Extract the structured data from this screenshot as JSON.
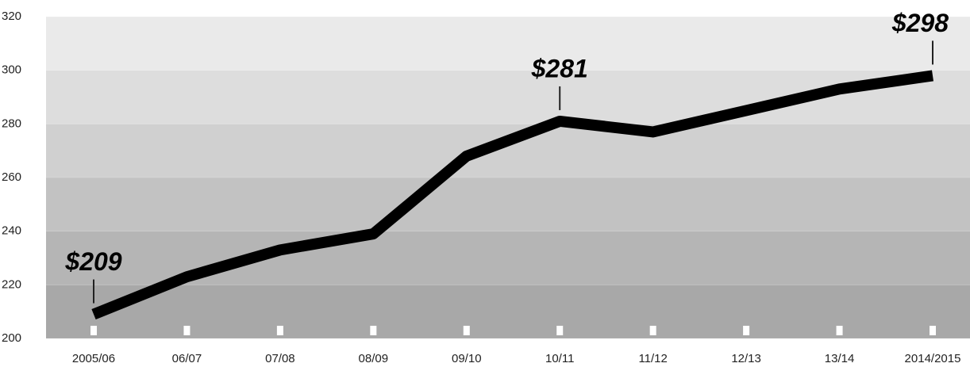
{
  "chart_data": {
    "type": "line",
    "categories": [
      "2005/06",
      "06/07",
      "07/08",
      "08/09",
      "09/10",
      "10/11",
      "11/12",
      "12/13",
      "13/14",
      "2014/2015"
    ],
    "values": [
      209,
      223,
      233,
      239,
      268,
      281,
      277,
      285,
      293,
      298
    ],
    "value_labels": [
      "$209",
      null,
      null,
      null,
      null,
      "$281",
      null,
      null,
      null,
      "$298"
    ],
    "color": "#000000",
    "ylim": [
      200,
      320
    ],
    "yticks": [
      200,
      220,
      240,
      260,
      280,
      300,
      320
    ],
    "grid": true
  }
}
